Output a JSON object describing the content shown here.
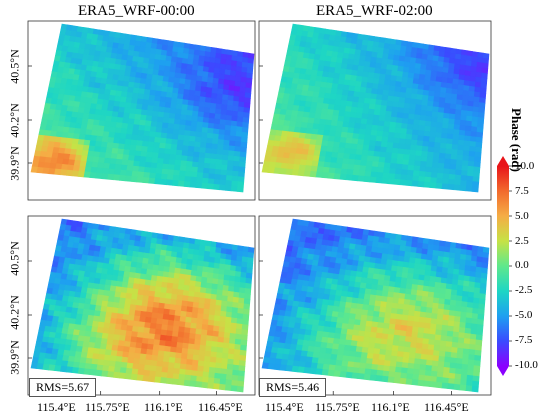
{
  "chart_data": {
    "type": "heatmap",
    "panels": [
      {
        "title": "ERA5_WRF-00:00",
        "rms": "",
        "pattern": "model_wrf_00"
      },
      {
        "title": "ERA5_WRF-02:00",
        "rms": "",
        "pattern": "model_wrf_02"
      },
      {
        "title": "",
        "rms": "RMS=5.67",
        "pattern": "residual_00"
      },
      {
        "title": "",
        "rms": "RMS=5.46",
        "pattern": "residual_02"
      }
    ],
    "y_tick_labels": [
      "40.5°N",
      "40.2°N",
      "39.9°N"
    ],
    "x_tick_labels": [
      "115.4°E",
      "115.75°E",
      "116.1°E",
      "116.45°E"
    ],
    "colorbar": {
      "title": "Phase (rad)",
      "range": [
        -10,
        10
      ],
      "ticks": [
        "10.0",
        "7.5",
        "5.0",
        "2.5",
        "0.0",
        "-2.5",
        "-5.0",
        "-7.5",
        "-10.0"
      ],
      "colormap": "rainbow",
      "colors": [
        "#8a00ff",
        "#3a4bff",
        "#1ea0f0",
        "#1ed6c4",
        "#5fe88c",
        "#c6e246",
        "#f5ad45",
        "#f26a2c",
        "#e8151a"
      ]
    }
  }
}
